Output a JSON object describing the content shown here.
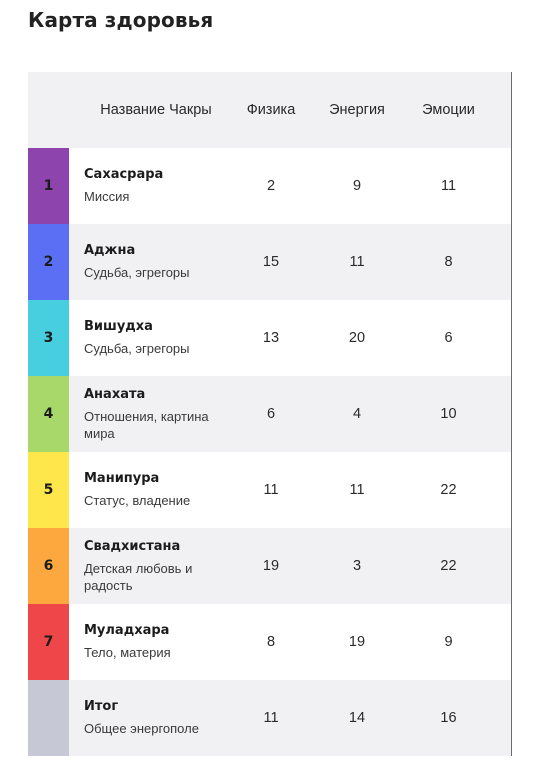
{
  "page_title": "Карта здоровья",
  "table": {
    "columns": {
      "name": "Название Чакры",
      "physics": "Физика",
      "energy": "Энергия",
      "emotions": "Эмоции"
    },
    "header_num_color": "#c6c8d5",
    "rows": [
      {
        "num": "1",
        "title": "Сахасрара",
        "subtitle": "Миссия",
        "physics": "2",
        "energy": "9",
        "emotions": "11",
        "color": "#8e44ad"
      },
      {
        "num": "2",
        "title": "Аджна",
        "subtitle": "Судьба, эгрегоры",
        "physics": "15",
        "energy": "11",
        "emotions": "8",
        "color": "#5b6ff5"
      },
      {
        "num": "3",
        "title": "Вишудха",
        "subtitle": "Судьба, эгрегоры",
        "physics": "13",
        "energy": "20",
        "emotions": "6",
        "color": "#47cfe0"
      },
      {
        "num": "4",
        "title": "Анахата",
        "subtitle": "Отношения, картина мира",
        "physics": "6",
        "energy": "4",
        "emotions": "10",
        "color": "#a9d86a"
      },
      {
        "num": "5",
        "title": "Манипура",
        "subtitle": "Статус, владение",
        "physics": "11",
        "energy": "11",
        "emotions": "22",
        "color": "#fde74b"
      },
      {
        "num": "6",
        "title": "Свадхистана",
        "subtitle": "Детская любовь и радость",
        "physics": "19",
        "energy": "3",
        "emotions": "22",
        "color": "#fca83f"
      },
      {
        "num": "7",
        "title": "Муладхара",
        "subtitle": "Тело, материя",
        "physics": "8",
        "energy": "19",
        "emotions": "9",
        "color": "#ef4749"
      }
    ],
    "total": {
      "title": "Итог",
      "subtitle": "Общее энергополе",
      "physics": "11",
      "energy": "14",
      "emotions": "16",
      "color": "#c6c8d5"
    }
  }
}
